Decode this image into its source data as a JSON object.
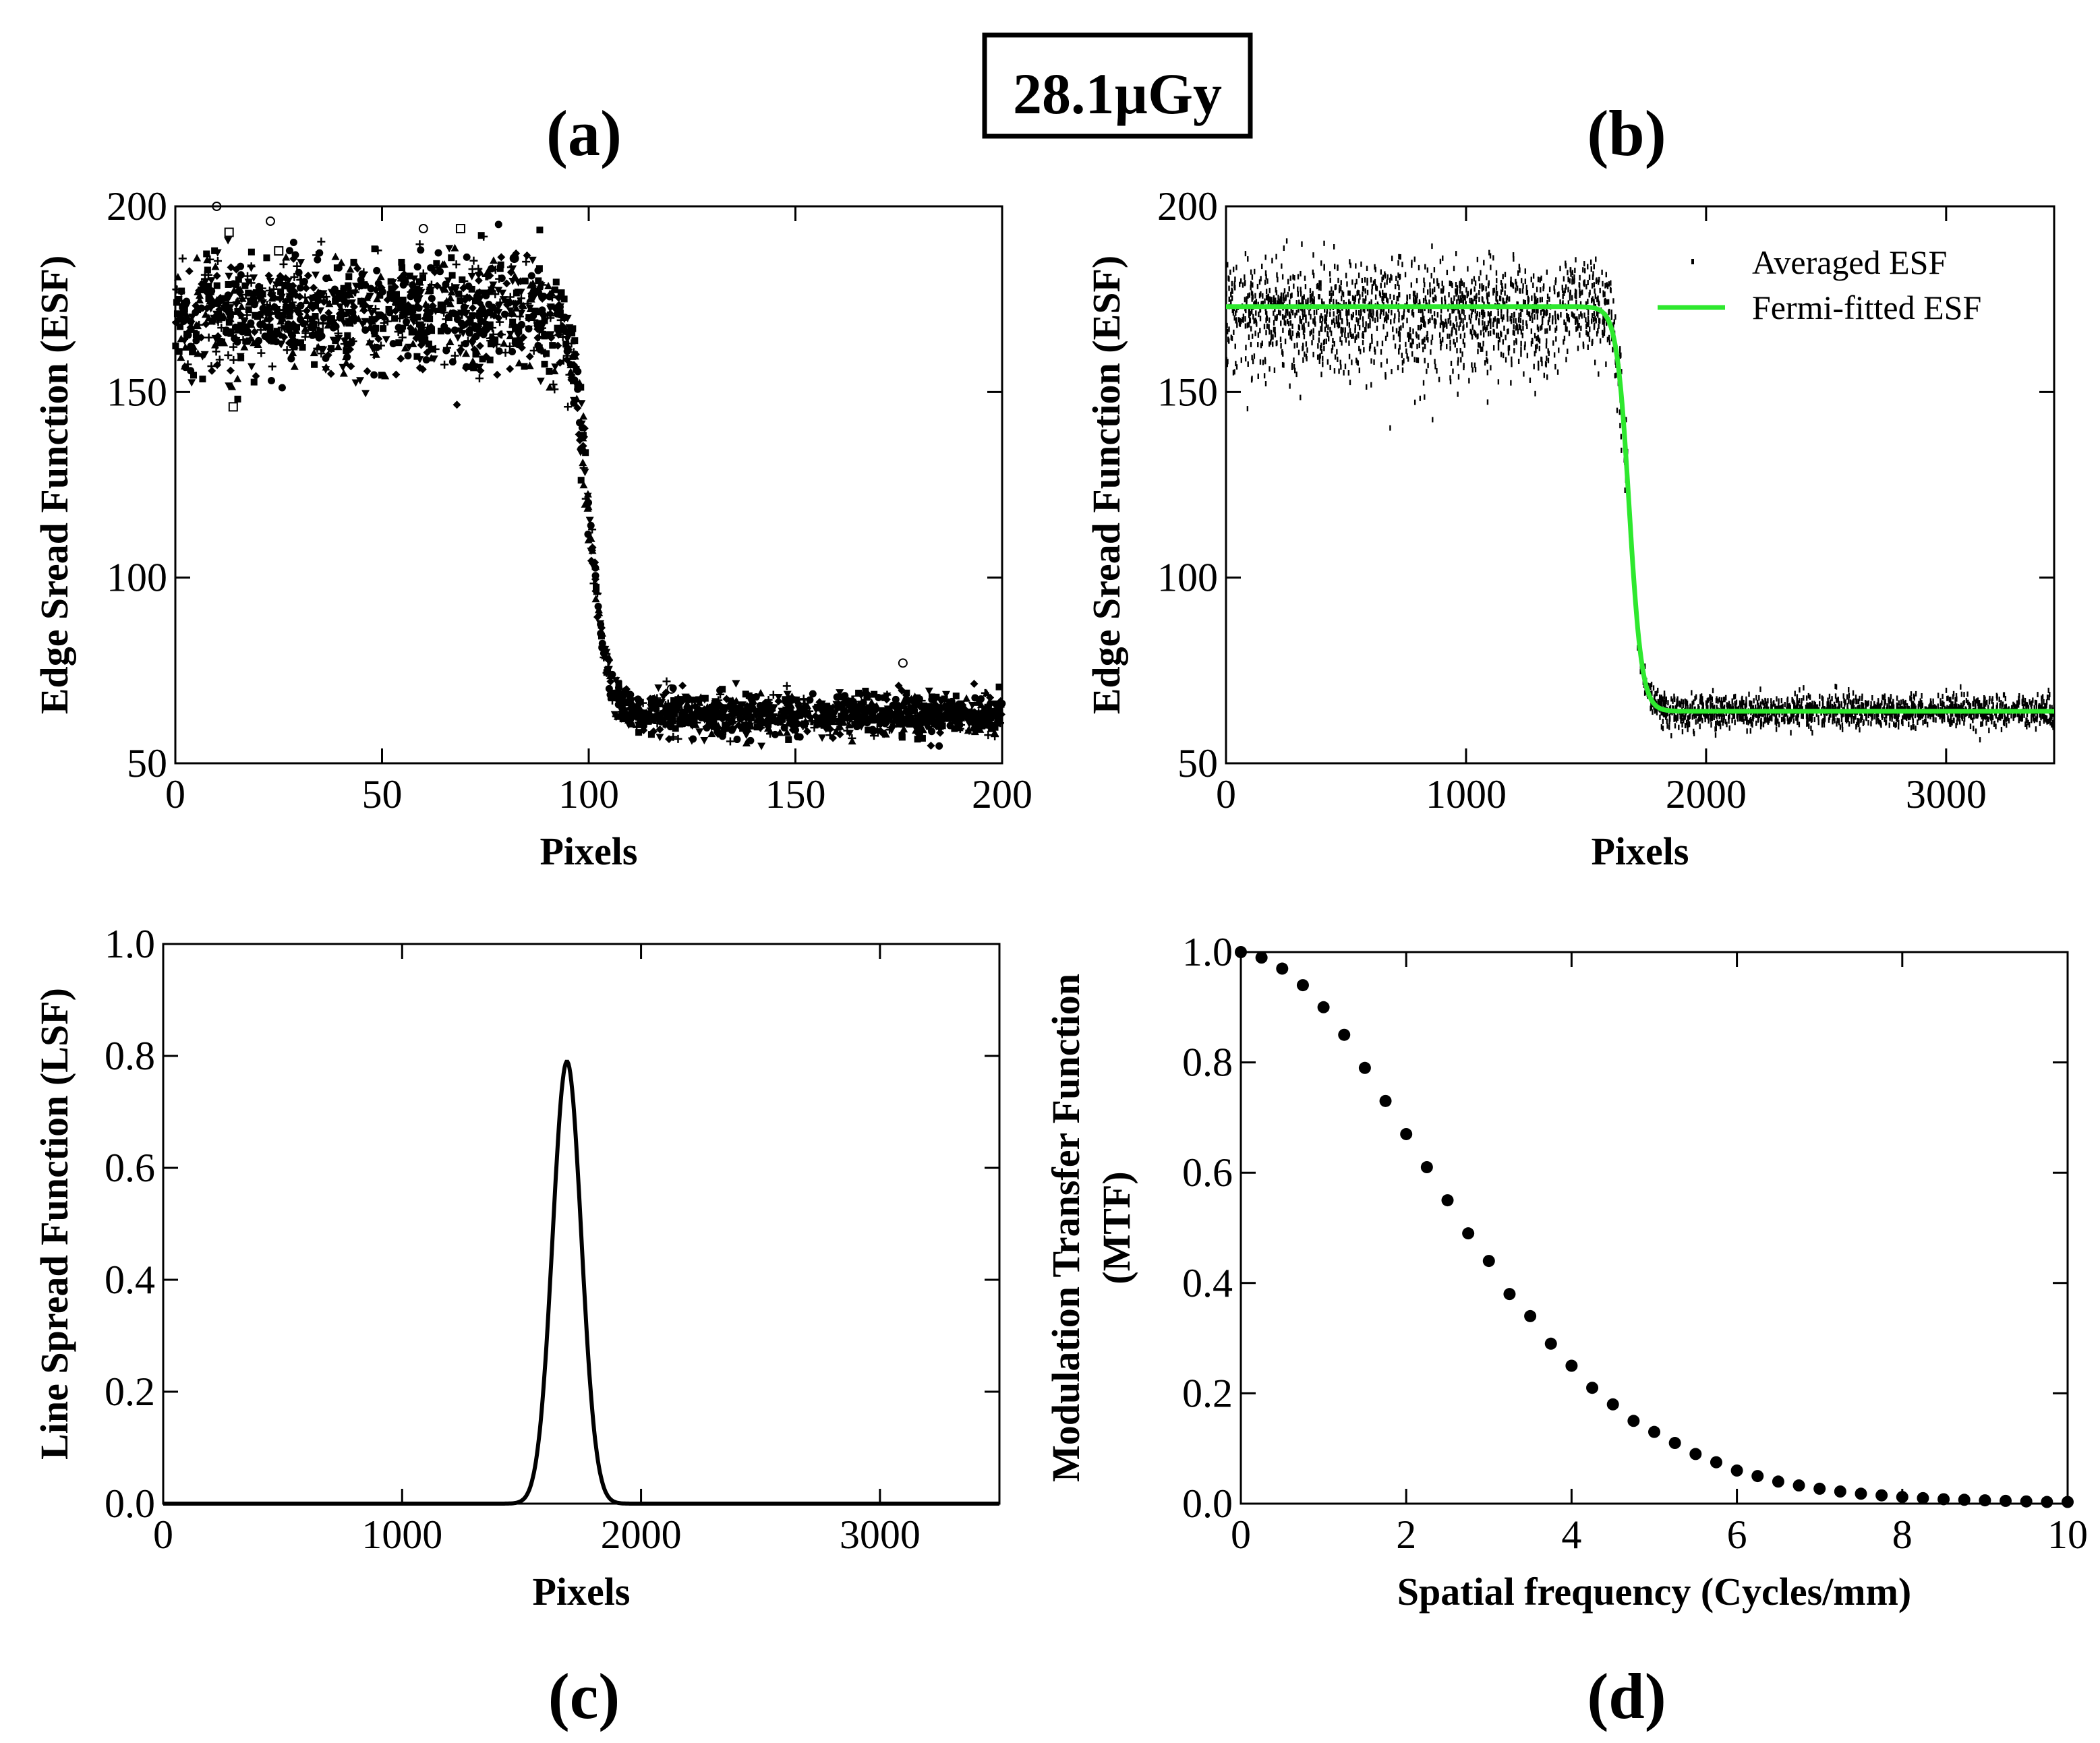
{
  "figure": {
    "dose_label": "28.1µGy"
  },
  "chart_data": [
    {
      "id": "a",
      "panel_label": "(a)",
      "type": "scatter",
      "xlabel": "Pixels",
      "ylabel": "Edge Sread Function (ESF)",
      "xlim": [
        0,
        200
      ],
      "ylim": [
        50,
        200
      ],
      "xticks": [
        0,
        50,
        100,
        150,
        200
      ],
      "yticks": [
        50,
        100,
        150,
        200
      ],
      "grid": false,
      "edge": {
        "plateau_high": 173,
        "plateau_low": 63,
        "center": 100,
        "width": 2.2,
        "noise": 7
      },
      "series": [
        {
          "values_sample": [
            [
              0,
              176
            ],
            [
              10,
              174
            ],
            [
              20,
              172
            ],
            [
              30,
              177
            ],
            [
              40,
              173
            ],
            [
              50,
              175
            ],
            [
              60,
              171
            ],
            [
              70,
              176
            ],
            [
              80,
              174
            ],
            [
              90,
              170
            ],
            [
              95,
              160
            ],
            [
              98,
              140
            ],
            [
              100,
              118
            ],
            [
              102,
              95
            ],
            [
              104,
              78
            ],
            [
              106,
              70
            ],
            [
              110,
              66
            ],
            [
              120,
              64
            ],
            [
              140,
              63
            ],
            [
              160,
              62
            ],
            [
              180,
              63
            ],
            [
              200,
              62
            ]
          ]
        }
      ],
      "outliers": [
        [
          10,
          200
        ],
        [
          13,
          193
        ],
        [
          23,
          196
        ],
        [
          25,
          188
        ],
        [
          60,
          194
        ],
        [
          69,
          194
        ],
        [
          82,
          186
        ],
        [
          14,
          146
        ],
        [
          120,
          70
        ],
        [
          152,
          66
        ],
        [
          176,
          77
        ],
        [
          165,
          67
        ]
      ]
    },
    {
      "id": "b",
      "panel_label": "(b)",
      "type": "line",
      "xlabel": "Pixels",
      "ylabel": "Edge Sread Function (ESF)",
      "xlim": [
        0,
        3450
      ],
      "ylim": [
        50,
        200
      ],
      "xticks": [
        0,
        1000,
        2000,
        3000
      ],
      "yticks": [
        50,
        100,
        150,
        200
      ],
      "grid": false,
      "legend_position": "top-right",
      "edge": {
        "plateau_high": 173,
        "plateau_low": 64,
        "center": 1680,
        "width": 26,
        "noise": 6
      },
      "series": [
        {
          "name": "Averaged ESF",
          "marker": "dot",
          "color": "#000000",
          "values_sample": [
            [
              0,
              172
            ],
            [
              500,
              173
            ],
            [
              1000,
              173
            ],
            [
              1400,
              174
            ],
            [
              1550,
              170
            ],
            [
              1620,
              155
            ],
            [
              1680,
              118
            ],
            [
              1740,
              80
            ],
            [
              1800,
              68
            ],
            [
              2000,
              65
            ],
            [
              2500,
              64
            ],
            [
              3000,
              63
            ],
            [
              3450,
              62
            ]
          ]
        },
        {
          "name": "Fermi-fitted ESF",
          "marker": "line",
          "color": "#2ee82e",
          "values_sample": [
            [
              0,
              173
            ],
            [
              1000,
              173
            ],
            [
              1500,
              172.8
            ],
            [
              1600,
              165
            ],
            [
              1650,
              145
            ],
            [
              1680,
              118.5
            ],
            [
              1710,
              92
            ],
            [
              1760,
              70
            ],
            [
              1850,
              64.2
            ],
            [
              2500,
              64
            ],
            [
              3450,
              64
            ]
          ]
        }
      ]
    },
    {
      "id": "c",
      "panel_label": "(c)",
      "type": "line",
      "xlabel": "Pixels",
      "ylabel": "Line Spread Function (LSF)",
      "xlim": [
        0,
        3500
      ],
      "ylim": [
        0.0,
        1.0
      ],
      "xticks": [
        0,
        1000,
        2000,
        3000
      ],
      "ytick_labels": [
        "0.0",
        "0.2",
        "0.4",
        "0.6",
        "0.8",
        "1.0"
      ],
      "grid": false,
      "series": [
        {
          "color": "#000000",
          "peak_x": 1690,
          "peak_y": 0.79,
          "width": 60,
          "values_sample": [
            [
              0,
              0
            ],
            [
              1400,
              0.001
            ],
            [
              1500,
              0.01
            ],
            [
              1600,
              0.17
            ],
            [
              1650,
              0.52
            ],
            [
              1690,
              0.79
            ],
            [
              1730,
              0.52
            ],
            [
              1780,
              0.17
            ],
            [
              1880,
              0.01
            ],
            [
              2000,
              0
            ],
            [
              3500,
              0
            ]
          ]
        }
      ]
    },
    {
      "id": "d",
      "panel_label": "(d)",
      "type": "scatter",
      "xlabel": "Spatial frequency (Cycles/mm)",
      "ylabel_lines": [
        "Modulation Transfer Function",
        "(MTF)"
      ],
      "xlim": [
        0,
        10
      ],
      "ylim": [
        0.0,
        1.0
      ],
      "xticks": [
        0,
        2,
        4,
        6,
        8,
        10
      ],
      "ytick_labels": [
        "0.0",
        "0.2",
        "0.4",
        "0.6",
        "0.8",
        "1.0"
      ],
      "grid": false,
      "x": [
        0.0,
        0.25,
        0.5,
        0.75,
        1.0,
        1.25,
        1.5,
        1.75,
        2.0,
        2.25,
        2.5,
        2.75,
        3.0,
        3.25,
        3.5,
        3.75,
        4.0,
        4.25,
        4.5,
        4.75,
        5.0,
        5.25,
        5.5,
        5.75,
        6.0,
        6.25,
        6.5,
        6.75,
        7.0,
        7.25,
        7.5,
        7.75,
        8.0,
        8.25,
        8.5,
        8.75,
        9.0,
        9.25,
        9.5,
        9.75,
        10.0
      ],
      "values": [
        1.0,
        0.99,
        0.97,
        0.94,
        0.9,
        0.85,
        0.79,
        0.73,
        0.67,
        0.61,
        0.55,
        0.49,
        0.44,
        0.38,
        0.34,
        0.29,
        0.25,
        0.21,
        0.18,
        0.15,
        0.13,
        0.11,
        0.09,
        0.075,
        0.06,
        0.05,
        0.04,
        0.033,
        0.027,
        0.022,
        0.018,
        0.015,
        0.012,
        0.01,
        0.008,
        0.007,
        0.006,
        0.005,
        0.004,
        0.003,
        0.003
      ]
    }
  ]
}
